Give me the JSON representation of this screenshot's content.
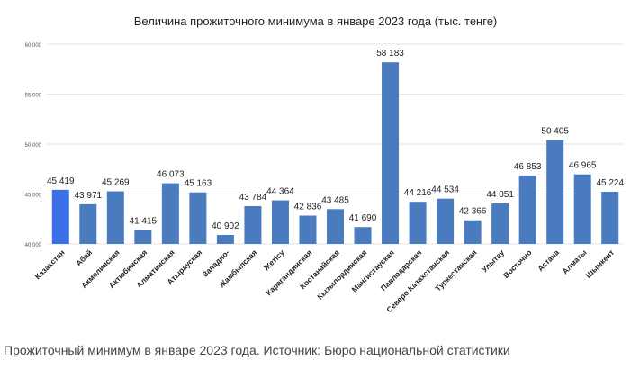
{
  "chart_data": {
    "type": "bar",
    "title": "Величина прожиточного минимума в январе 2023 года (тыс. тенге)",
    "xlabel": "",
    "ylabel": "",
    "ylim": [
      40000,
      60000
    ],
    "ytick_values": [
      40000,
      45000,
      50000,
      55000,
      60000
    ],
    "ytick_labels": [
      "40 000",
      "45 000",
      "50 000",
      "55 000",
      "60 000"
    ],
    "grid": true,
    "legend": "none",
    "categories": [
      "Казахстан",
      "Абай",
      "Акмолинская",
      "Актюбинская",
      "Алматинская",
      "Атырауская",
      "Западно-",
      "Жамбылская",
      "Жетісу",
      "Карагандинская",
      "Костанайская",
      "Кызылординская",
      "Мангистауская",
      "Павлодарская",
      "Северо Казахстанская",
      "Туркестанская",
      "Улытау",
      "Восточно",
      "Астана",
      "Алматы",
      "Шымкент"
    ],
    "values": [
      45419,
      43971,
      45269,
      41415,
      46073,
      45163,
      40902,
      43784,
      44364,
      42836,
      43485,
      41690,
      58183,
      44216,
      44534,
      42366,
      44051,
      46853,
      50405,
      46965,
      45224
    ],
    "value_labels": [
      "45 419",
      "43 971",
      "45 269",
      "41 415",
      "46 073",
      "45 163",
      "40 902",
      "43 784",
      "44 364",
      "42 836",
      "43 485",
      "41 690",
      "58 183",
      "44 216",
      "44 534",
      "42 366",
      "44 051",
      "46 853",
      "50 405",
      "46 965",
      "45 224"
    ],
    "colors": {
      "bar": "#4a7bbf",
      "highlight": "#3a6fe8",
      "grid": "#e4e4e4",
      "text": "#222222"
    },
    "highlight_index": 0
  },
  "caption": "Прожиточный минимум в январе 2023 года. Источник: Бюро национальной статистики"
}
